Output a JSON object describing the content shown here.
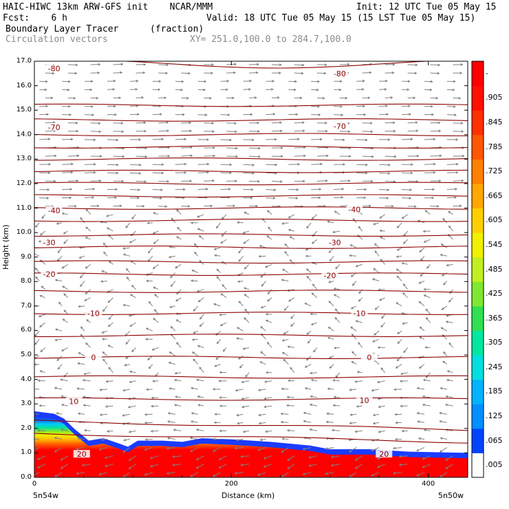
{
  "header": {
    "line1_left": "HAIC-HIWC 13km ARW-GFS init    NCAR/MMM",
    "line1_right": "Init: 12 UTC Tue 05 May 15",
    "line2_left": "Fcst:    6 h",
    "line2_right": "Valid: 18 UTC Tue 05 May 15 (15 LST Tue 05 May 15)",
    "line3_left": "Boundary Layer Tracer",
    "line3_units": "(fraction)",
    "line4_left": "Circulation vectors",
    "line4_xy": "XY= 251.0,100.0 to 284.7,100.0"
  },
  "axes": {
    "ylabel": "Height (km)",
    "xlabel": "Distance (km)",
    "x_left_label": "5n54w",
    "x_right_label": "5n50w"
  },
  "colors": {
    "contour": "#8b0000",
    "vector": "#808080",
    "tracer_red": "#ff0000",
    "tracer_blue": "#1a3cff"
  },
  "chart_data": {
    "type": "heatmap",
    "xlim": [
      0,
      440
    ],
    "ylim": [
      0,
      17
    ],
    "yticks": [
      "0.0",
      "1.0",
      "2.0",
      "3.0",
      "4.0",
      "5.0",
      "6.0",
      "7.0",
      "8.0",
      "9.0",
      "10.0",
      "11.0",
      "12.0",
      "13.0",
      "14.0",
      "15.0",
      "16.0",
      "17.0"
    ],
    "yticks_values": [
      0,
      1,
      2,
      3,
      4,
      5,
      6,
      7,
      8,
      9,
      10,
      11,
      12,
      13,
      14,
      15,
      16,
      17
    ],
    "xticks": [
      "0",
      "200",
      "400"
    ],
    "xticks_values": [
      0,
      200,
      400
    ],
    "colorbar": {
      "labels": [
        ".005",
        ".065",
        ".125",
        ".185",
        ".245",
        ".305",
        ".365",
        ".425",
        ".485",
        ".545",
        ".605",
        ".665",
        ".725",
        ".785",
        ".845",
        ".905",
        "-"
      ],
      "colors": [
        "#ffffff",
        "#0044ff",
        "#0090ff",
        "#00b4ff",
        "#00e0e0",
        "#00e8a0",
        "#30e050",
        "#80e830",
        "#c0f020",
        "#f0f000",
        "#ffd000",
        "#ffa800",
        "#ff8000",
        "#ff5800",
        "#ff3000",
        "#ff1000",
        "#ff0000"
      ]
    },
    "contour_labels": [
      {
        "value": "-80",
        "x": 20,
        "y": 16.7
      },
      {
        "value": "-80",
        "x": 310,
        "y": 16.5
      },
      {
        "value": "-70",
        "x": 20,
        "y": 14.3
      },
      {
        "value": "-70",
        "x": 310,
        "y": 14.35
      },
      {
        "value": "-40",
        "x": 20,
        "y": 10.9
      },
      {
        "value": "-40",
        "x": 325,
        "y": 10.95
      },
      {
        "value": "-30",
        "x": 15,
        "y": 9.6
      },
      {
        "value": "-30",
        "x": 305,
        "y": 9.6
      },
      {
        "value": "-20",
        "x": 15,
        "y": 8.3
      },
      {
        "value": "-20",
        "x": 300,
        "y": 8.25
      },
      {
        "value": "-10",
        "x": 60,
        "y": 6.7
      },
      {
        "value": "-10",
        "x": 330,
        "y": 6.7
      },
      {
        "value": "0",
        "x": 60,
        "y": 4.9
      },
      {
        "value": "0",
        "x": 340,
        "y": 4.9
      },
      {
        "value": "10",
        "x": 40,
        "y": 3.1
      },
      {
        "value": "10",
        "x": 335,
        "y": 3.15
      },
      {
        "value": "20",
        "x": 48,
        "y": 0.95
      },
      {
        "value": "20",
        "x": 355,
        "y": 0.95
      }
    ],
    "contour_levels_height_km": [
      16.9,
      15.2,
      14.6,
      14.0,
      13.5,
      13.0,
      12.5,
      12.0,
      11.5,
      11.0,
      10.5,
      9.9,
      9.4,
      8.8,
      8.3,
      7.6,
      6.7,
      5.8,
      4.9,
      4.1,
      3.2,
      2.3,
      1.8
    ],
    "tracer_top_km": [
      {
        "x": 0,
        "y": 2.7
      },
      {
        "x": 20,
        "y": 2.6
      },
      {
        "x": 30,
        "y": 2.4
      },
      {
        "x": 40,
        "y": 2.0
      },
      {
        "x": 55,
        "y": 1.5
      },
      {
        "x": 70,
        "y": 1.6
      },
      {
        "x": 85,
        "y": 1.4
      },
      {
        "x": 95,
        "y": 1.25
      },
      {
        "x": 105,
        "y": 1.5
      },
      {
        "x": 130,
        "y": 1.5
      },
      {
        "x": 150,
        "y": 1.45
      },
      {
        "x": 170,
        "y": 1.6
      },
      {
        "x": 200,
        "y": 1.55
      },
      {
        "x": 240,
        "y": 1.45
      },
      {
        "x": 280,
        "y": 1.3
      },
      {
        "x": 300,
        "y": 1.15
      },
      {
        "x": 340,
        "y": 1.15
      },
      {
        "x": 380,
        "y": 1.05
      },
      {
        "x": 440,
        "y": 1.0
      }
    ]
  }
}
